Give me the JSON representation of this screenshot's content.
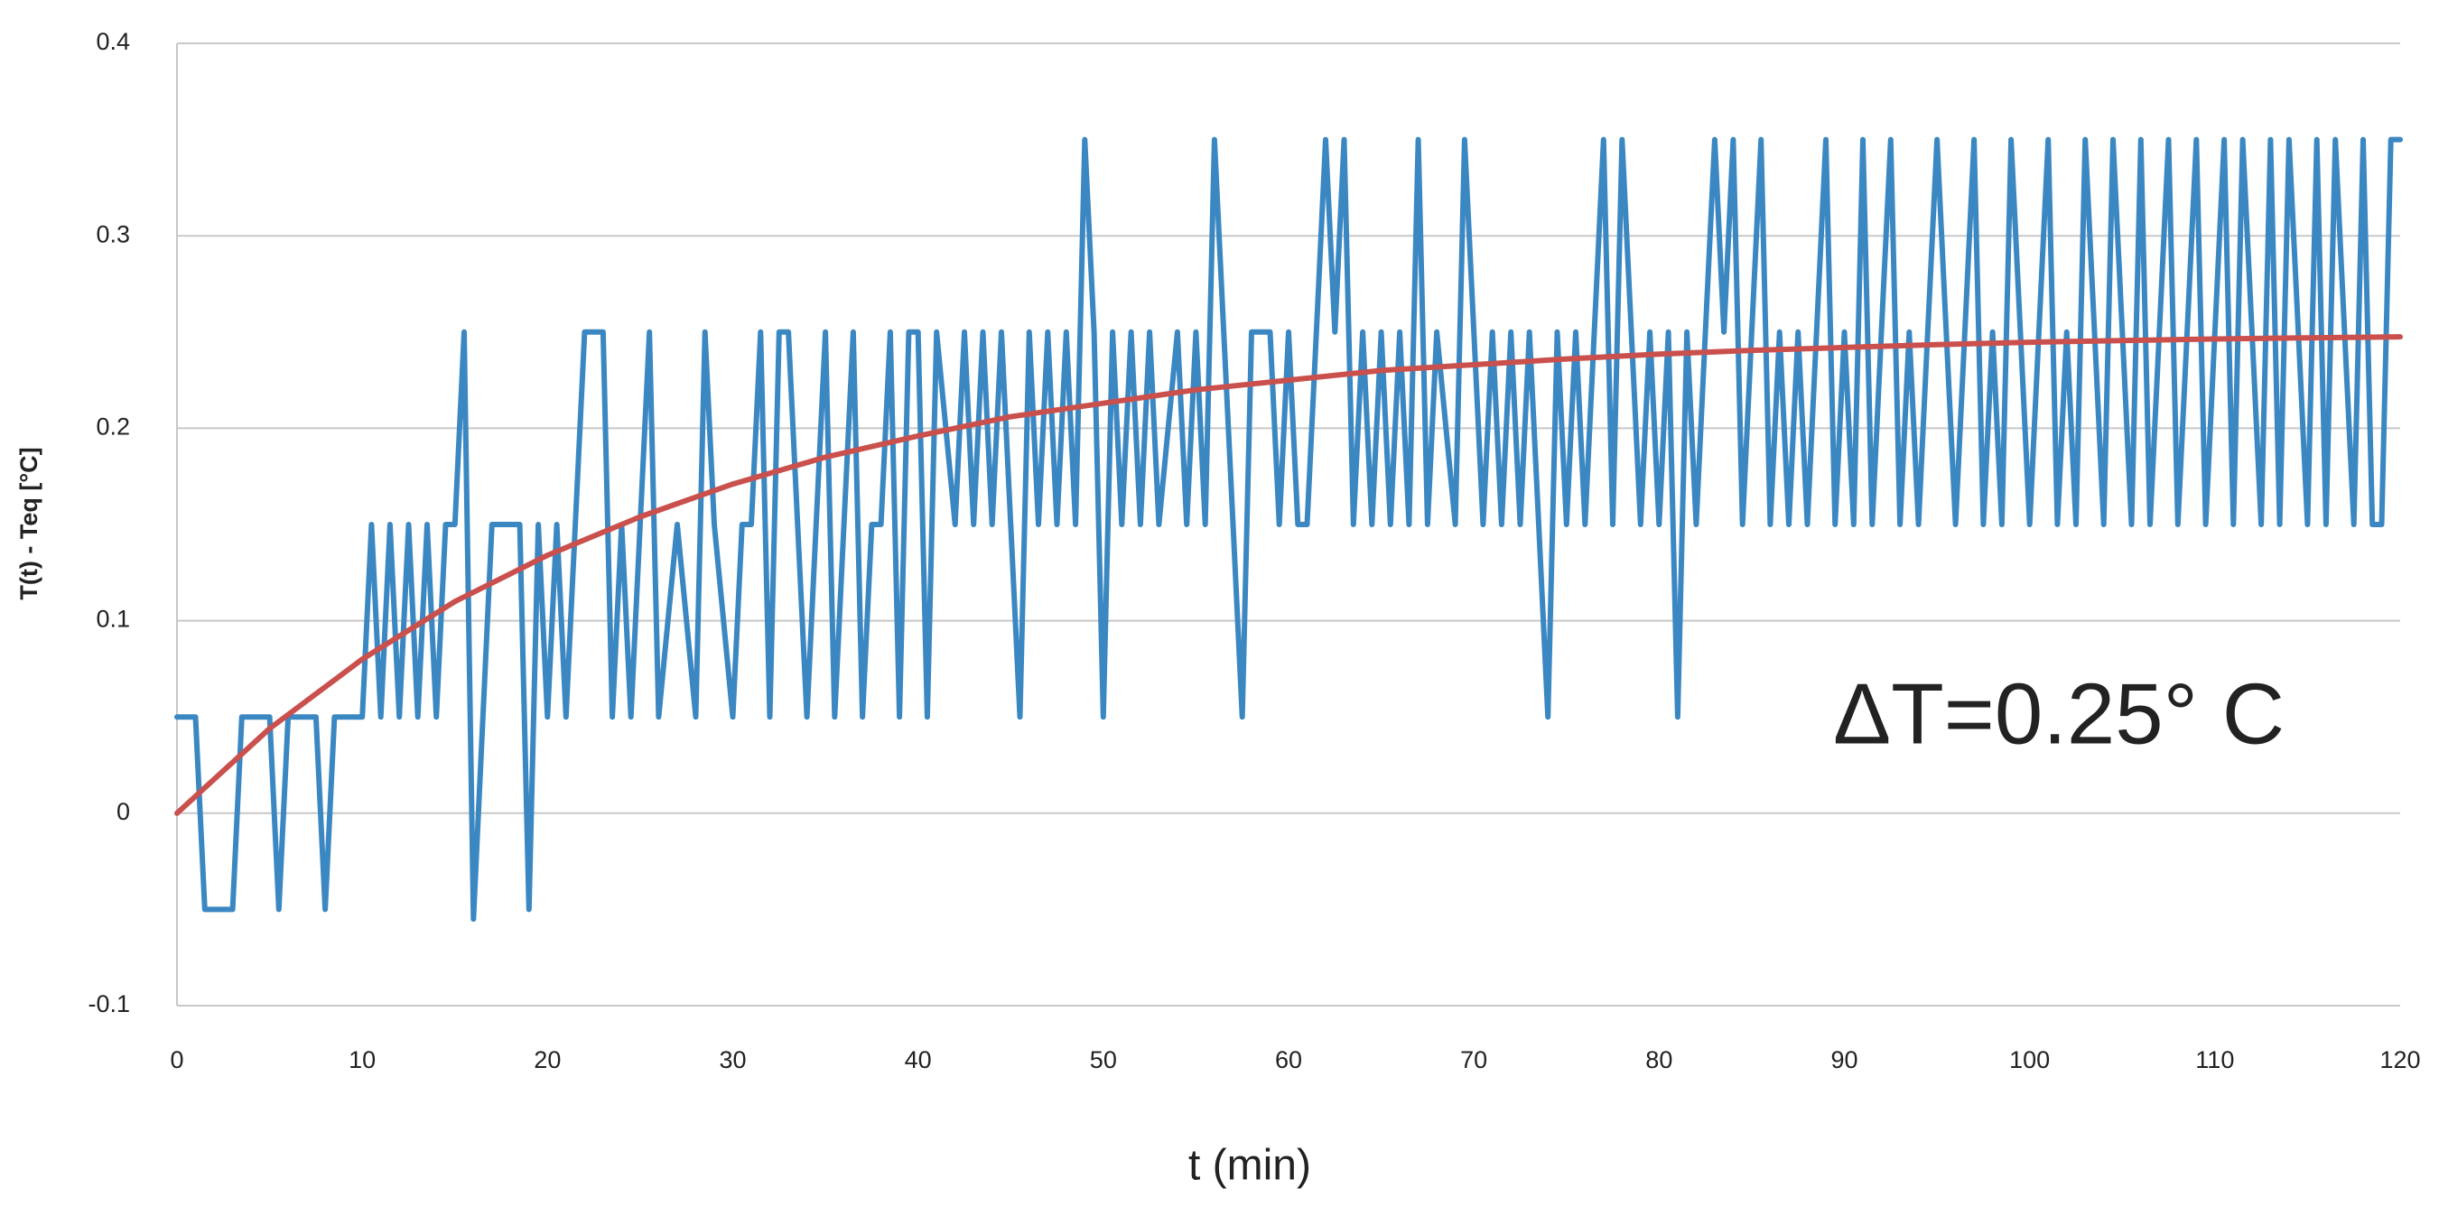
{
  "chart_data": {
    "type": "line",
    "x_label": "t  (min)",
    "y_label": "T(t) - Teq [°C]",
    "annotation": "ΔT=0.25°  C",
    "annotation_color": "#ff1f1f",
    "xlim": [
      0,
      120
    ],
    "xticks": [
      0,
      10,
      20,
      30,
      40,
      50,
      60,
      70,
      80,
      90,
      100,
      110,
      120
    ],
    "ylim": [
      -0.1,
      0.4
    ],
    "yticks": [
      -0.1,
      0,
      0.1,
      0.2,
      0.3,
      0.4
    ],
    "grid": true,
    "series": [
      {
        "color": "#3a87c2",
        "x": [
          0,
          1,
          1.5,
          3,
          3.5,
          5,
          5.5,
          6,
          7.5,
          8,
          8.5,
          10,
          10.5,
          11,
          11.5,
          12,
          12.5,
          13,
          13.5,
          14,
          14.5,
          15,
          15.5,
          16,
          17,
          18.5,
          19,
          19.5,
          20,
          20.5,
          21,
          21.5,
          22,
          23,
          23.5,
          24,
          24.5,
          25,
          25.5,
          26,
          27,
          28,
          28.5,
          29,
          30,
          30.5,
          31,
          31.5,
          32,
          32.5,
          33,
          33.5,
          34,
          34.5,
          35,
          35.5,
          36,
          36.5,
          37,
          37.5,
          38,
          38.5,
          39,
          39.5,
          40,
          40.5,
          41,
          42,
          42.5,
          43,
          43.5,
          44,
          44.5,
          45,
          45.5,
          46,
          46.5,
          47,
          47.5,
          48,
          48.5,
          49,
          49.5,
          50,
          50.5,
          51,
          51.5,
          52,
          52.5,
          53,
          54,
          54.5,
          55,
          55.5,
          56,
          56.5,
          57,
          57.5,
          58,
          59,
          59.5,
          60,
          60.5,
          61,
          61.5,
          62,
          62.5,
          63,
          63.5,
          64,
          64.5,
          65,
          65.5,
          66,
          66.5,
          67,
          67.5,
          68,
          69,
          69.5,
          70,
          70.5,
          71,
          71.5,
          72,
          72.5,
          73,
          73.5,
          74,
          74.5,
          75,
          75.5,
          76,
          77,
          77.5,
          78,
          78.5,
          79,
          79.5,
          80,
          80.5,
          81,
          81.5,
          82,
          82.5,
          83,
          83.5,
          84,
          84.5,
          85,
          85.5,
          86,
          86.5,
          87,
          87.5,
          88,
          88.5,
          89,
          89.5,
          90,
          90.5,
          91,
          91.5,
          92,
          92.5,
          93,
          93.5,
          94,
          94.5,
          95,
          95.5,
          96,
          96.5,
          97,
          97.5,
          98,
          98.5,
          99,
          99.5,
          100,
          100.5,
          101,
          101.5,
          102,
          102.5,
          103,
          103.5,
          104,
          104.5,
          105,
          105.5,
          106,
          106.5,
          107,
          107.5,
          108,
          108.5,
          109,
          109.5,
          110,
          110.5,
          111,
          111.5,
          112,
          112.5,
          113,
          113.5,
          114,
          114.5,
          115,
          115.5,
          116,
          116.5,
          117,
          117.5,
          118,
          118.5,
          119,
          119.5,
          120
        ],
        "values": [
          0.05,
          0.05,
          -0.05,
          -0.05,
          0.05,
          0.05,
          -0.05,
          0.05,
          0.05,
          -0.05,
          0.05,
          0.05,
          0.15,
          0.05,
          0.15,
          0.05,
          0.15,
          0.05,
          0.15,
          0.05,
          0.15,
          0.15,
          0.25,
          -0.055,
          0.15,
          0.15,
          -0.05,
          0.15,
          0.05,
          0.15,
          0.05,
          0.15,
          0.25,
          0.25,
          0.05,
          0.15,
          0.05,
          0.15,
          0.25,
          0.05,
          0.15,
          0.05,
          0.25,
          0.15,
          0.05,
          0.15,
          0.15,
          0.25,
          0.05,
          0.25,
          0.25,
          0.15,
          0.05,
          0.15,
          0.25,
          0.05,
          0.15,
          0.25,
          0.05,
          0.15,
          0.15,
          0.25,
          0.05,
          0.25,
          0.25,
          0.05,
          0.25,
          0.15,
          0.25,
          0.15,
          0.25,
          0.15,
          0.25,
          0.15,
          0.05,
          0.25,
          0.15,
          0.25,
          0.15,
          0.25,
          0.15,
          0.35,
          0.25,
          0.05,
          0.25,
          0.15,
          0.25,
          0.15,
          0.25,
          0.15,
          0.25,
          0.15,
          0.25,
          0.15,
          0.35,
          0.25,
          0.15,
          0.05,
          0.25,
          0.25,
          0.15,
          0.25,
          0.15,
          0.15,
          0.25,
          0.35,
          0.25,
          0.35,
          0.15,
          0.25,
          0.15,
          0.25,
          0.15,
          0.25,
          0.15,
          0.35,
          0.15,
          0.25,
          0.15,
          0.35,
          0.25,
          0.15,
          0.25,
          0.15,
          0.25,
          0.15,
          0.25,
          0.15,
          0.05,
          0.25,
          0.15,
          0.25,
          0.15,
          0.35,
          0.15,
          0.35,
          0.25,
          0.15,
          0.25,
          0.15,
          0.25,
          0.05,
          0.25,
          0.15,
          0.25,
          0.35,
          0.25,
          0.35,
          0.15,
          0.25,
          0.35,
          0.15,
          0.25,
          0.15,
          0.25,
          0.15,
          0.25,
          0.35,
          0.15,
          0.25,
          0.15,
          0.35,
          0.15,
          0.25,
          0.35,
          0.15,
          0.25,
          0.15,
          0.25,
          0.35,
          0.25,
          0.15,
          0.25,
          0.35,
          0.15,
          0.25,
          0.15,
          0.35,
          0.25,
          0.15,
          0.25,
          0.35,
          0.15,
          0.25,
          0.15,
          0.35,
          0.25,
          0.15,
          0.35,
          0.25,
          0.15,
          0.35,
          0.15,
          0.25,
          0.35,
          0.15,
          0.25,
          0.35,
          0.15,
          0.25,
          0.35,
          0.15,
          0.35,
          0.25,
          0.15,
          0.35,
          0.15,
          0.35,
          0.25,
          0.15,
          0.35,
          0.15,
          0.35,
          0.25,
          0.15,
          0.35,
          0.15,
          0.15,
          0.35,
          0.35
        ]
      },
      {
        "color": "#c9504c",
        "x": [
          0,
          5,
          10,
          15,
          20,
          25,
          30,
          35,
          40,
          45,
          50,
          55,
          60,
          65,
          70,
          75,
          80,
          85,
          90,
          95,
          100,
          105,
          110,
          115,
          120
        ],
        "values": [
          0,
          0.044,
          0.08,
          0.11,
          0.134,
          0.154,
          0.171,
          0.185,
          0.196,
          0.206,
          0.213,
          0.22,
          0.225,
          0.23,
          0.233,
          0.236,
          0.2385,
          0.2405,
          0.242,
          0.2435,
          0.2447,
          0.2456,
          0.2464,
          0.247,
          0.2475
        ]
      }
    ]
  }
}
